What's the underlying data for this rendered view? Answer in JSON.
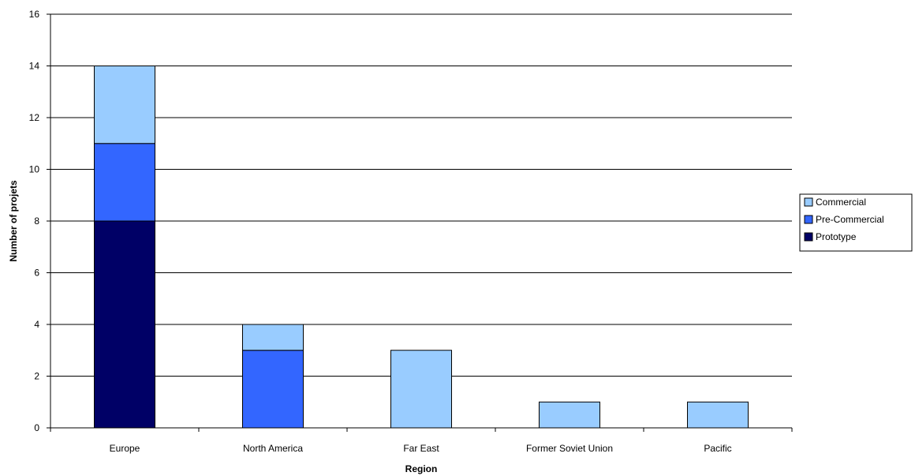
{
  "chart_data": {
    "type": "bar",
    "stacked": true,
    "categories": [
      "Europe",
      "North America",
      "Far East",
      "Former Soviet Union",
      "Pacific"
    ],
    "series": [
      {
        "name": "Prototype",
        "color": "#000066",
        "values": [
          8,
          0,
          0,
          0,
          0
        ]
      },
      {
        "name": "Pre-Commercial",
        "color": "#3366ff",
        "values": [
          3,
          3,
          0,
          0,
          0
        ]
      },
      {
        "name": "Commercial",
        "color": "#99ccff",
        "values": [
          3,
          1,
          3,
          1,
          1
        ]
      }
    ],
    "xlabel": "Region",
    "ylabel": "Number of projets",
    "ylim": [
      0,
      16
    ],
    "yticks": [
      0,
      2,
      4,
      6,
      8,
      10,
      12,
      14,
      16
    ],
    "grid": true,
    "legend_position": "right",
    "legend_order": [
      "Commercial",
      "Pre-Commercial",
      "Prototype"
    ]
  }
}
